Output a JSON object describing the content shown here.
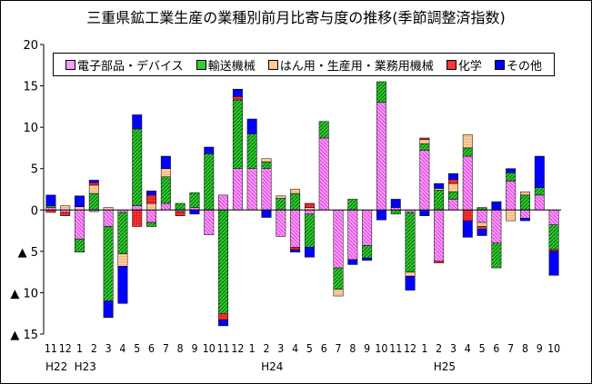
{
  "chart_data": {
    "type": "bar",
    "stacked": true,
    "title": "三重県鉱工業生産の業種別前月比寄与度の推移(季節調整済指数)",
    "ylim": [
      -15,
      20
    ],
    "yticks": [
      20,
      15,
      10,
      5,
      0,
      -5,
      -10,
      -15
    ],
    "ytick_labels": [
      "20",
      "15",
      "10",
      "5",
      "0",
      "▲ 5",
      "▲ 10",
      "▲ 15"
    ],
    "categories": [
      "11",
      "12",
      "1",
      "2",
      "3",
      "4",
      "5",
      "6",
      "7",
      "8",
      "9",
      "10",
      "11",
      "12",
      "1",
      "2",
      "3",
      "4",
      "5",
      "6",
      "7",
      "8",
      "9",
      "10",
      "11",
      "12",
      "1",
      "2",
      "3",
      "4",
      "5",
      "6",
      "7",
      "8",
      "9",
      "10"
    ],
    "year_labels": [
      {
        "index": 0,
        "label": "H22"
      },
      {
        "index": 2,
        "label": "H23"
      },
      {
        "index": 15,
        "label": "H24"
      },
      {
        "index": 27,
        "label": "H25"
      }
    ],
    "legend_position": "top",
    "grid": false,
    "series": [
      {
        "name": "電子部品・デバイス",
        "color": "#ff99ff",
        "pattern": "diag-down",
        "values": [
          0.3,
          -0.3,
          -3.5,
          -0.2,
          -2.0,
          -0.3,
          0.5,
          -1.5,
          0.8,
          -0.2,
          0.3,
          -3.0,
          1.8,
          5.0,
          5.0,
          5.0,
          -3.2,
          -4.5,
          -0.5,
          8.7,
          -7.0,
          -6.0,
          -4.3,
          13.0,
          0.3,
          -0.3,
          7.2,
          -6.2,
          1.3,
          6.5,
          -1.5,
          -4.0,
          3.5,
          -1.0,
          1.8,
          -1.8
        ]
      },
      {
        "name": "輸送機械",
        "color": "#33cc33",
        "pattern": "diag-up",
        "values": [
          0.2,
          0,
          -1.6,
          2.0,
          -9.0,
          -5.0,
          9.3,
          -0.5,
          3.2,
          0.8,
          1.8,
          6.8,
          -12.5,
          8.3,
          4.2,
          0.8,
          1.4,
          2.0,
          -4.0,
          2.0,
          -2.6,
          1.3,
          -1.5,
          2.5,
          -0.5,
          -7.2,
          0.8,
          2.4,
          0.9,
          1.0,
          0.3,
          -3.0,
          1.0,
          1.8,
          0.9,
          -3.0
        ]
      },
      {
        "name": "はん用・生産用・業務用機械",
        "color": "#ffcc99",
        "pattern": "horiz",
        "values": [
          0,
          0.5,
          0.4,
          1.0,
          0.3,
          -1.5,
          0,
          0.8,
          1.0,
          0,
          0,
          0,
          0,
          0,
          0,
          0.4,
          0.3,
          0.5,
          0.3,
          0,
          -0.8,
          0,
          0,
          0,
          0,
          -0.5,
          0.5,
          0.2,
          1.0,
          1.6,
          -0.5,
          0,
          -1.3,
          0.4,
          0,
          0
        ]
      },
      {
        "name": "化学",
        "color": "#ff3333",
        "pattern": "grid",
        "values": [
          -0.3,
          -0.4,
          0,
          0.3,
          0,
          0,
          -2.0,
          1.0,
          0,
          -0.5,
          0,
          0,
          -0.8,
          0.4,
          0,
          0,
          0,
          -0.3,
          0.5,
          0,
          0,
          0,
          0,
          0,
          0,
          0,
          0.2,
          -0.2,
          0.5,
          -1.3,
          -0.3,
          0,
          0,
          0,
          0,
          -0.2
        ]
      },
      {
        "name": "その他",
        "color": "#0000ff",
        "pattern": "solid",
        "values": [
          1.3,
          0,
          1.3,
          0.3,
          -2.0,
          -4.5,
          1.7,
          0.5,
          1.5,
          0,
          -0.5,
          0.8,
          -0.7,
          0.9,
          1.8,
          -0.9,
          0,
          -0.3,
          -1.2,
          0,
          0,
          -0.6,
          -0.3,
          -1.2,
          1.0,
          -1.7,
          -0.7,
          0.6,
          0.7,
          -2.0,
          -0.8,
          1.0,
          0.5,
          -0.3,
          3.8,
          -2.9
        ]
      }
    ]
  }
}
